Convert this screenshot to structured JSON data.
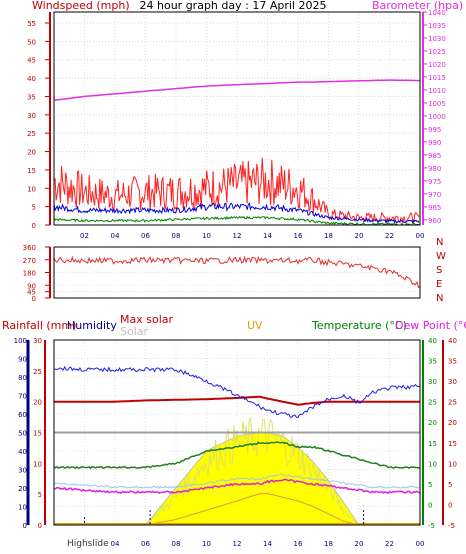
{
  "title": "24 hour graph day : 17 April 2025",
  "colors": {
    "wind": "#e00000",
    "gust": "#ff2020",
    "avgwind": "#0000e0",
    "greenwind": "#008000",
    "baro": "#e030e0",
    "direction": "#e03030",
    "humidity": "#2020e0",
    "maxsolar": "#c00000",
    "solar": "#a0a0a0",
    "uv": "#ffff00",
    "temperature": "#208020",
    "dewpoint": "#e020e0",
    "rain": "#e0a000",
    "cardinal": "#c00000",
    "rainaxis": "#c00000",
    "humaxis": "#000080",
    "tempaxis": "#008000",
    "dewaxis": "#c00000"
  },
  "top_panel": {
    "left_label": "Windspeed (mph)",
    "right_label": "Barometer (hpa)"
  },
  "middle_panel": {
    "cardinals": [
      "N",
      "W",
      "S",
      "E",
      "N"
    ]
  },
  "bottom_panel": {
    "rain_label": "Rainfall (mm)",
    "humidity_label": "Humidity",
    "maxsolar_label": "Max solar",
    "solar_label": "Solar",
    "uv_label": "UV",
    "temp_label": "Temperature (°C)",
    "dew_label": "Dew Point (°C)",
    "highslide": "Highslide"
  },
  "chart_data": [
    {
      "type": "line",
      "x_ticks": [
        "02",
        "04",
        "06",
        "08",
        "10",
        "12",
        "14",
        "16",
        "18",
        "20",
        "22",
        "00"
      ],
      "left_axis": {
        "label": "Windspeed (mph)",
        "ylim": [
          0,
          58
        ],
        "ticks": [
          0,
          5,
          10,
          15,
          20,
          25,
          30,
          35,
          40,
          45,
          50,
          55
        ]
      },
      "right_axis": {
        "label": "Barometer (hpa)",
        "ylim": [
          958,
          1040
        ],
        "ticks": [
          960,
          965,
          970,
          975,
          980,
          985,
          990,
          995,
          1000,
          1005,
          1010,
          1015,
          1020,
          1025,
          1030,
          1035,
          1040
        ]
      },
      "x_hours": [
        0,
        2,
        4,
        6,
        8,
        10,
        12,
        14,
        16,
        17,
        18,
        20,
        22,
        24
      ],
      "series": [
        {
          "axis": "right",
          "values": [
            1006,
            1007.5,
            1008.5,
            1009.5,
            1010.5,
            1011.5,
            1012,
            1012.5,
            1013,
            1013,
            1013.2,
            1013.5,
            1013.8,
            1013.6
          ]
        },
        {
          "axis": "left",
          "values": [
            12,
            9,
            8,
            9,
            9,
            10,
            11,
            12,
            10,
            7,
            3,
            2,
            2,
            2
          ]
        },
        {
          "axis": "left",
          "values": [
            5,
            4,
            4,
            4,
            4,
            5,
            5,
            5,
            4,
            3,
            2,
            1.5,
            1,
            1
          ]
        },
        {
          "axis": "left",
          "values": [
            1.5,
            1.2,
            1.2,
            1.2,
            1.5,
            1.8,
            2,
            2,
            1.5,
            1,
            0.5,
            0.3,
            0.2,
            0.2
          ]
        }
      ]
    },
    {
      "type": "line",
      "y_ticks": [
        0,
        45,
        90,
        135,
        180,
        225,
        270,
        315,
        360
      ],
      "ylim": [
        0,
        360
      ],
      "x_hours": [
        0,
        2,
        4,
        6,
        8,
        10,
        12,
        14,
        16,
        17,
        18,
        19,
        20,
        21,
        22,
        23,
        24
      ],
      "series": [
        {
          "values": [
            270,
            265,
            262,
            268,
            265,
            262,
            268,
            265,
            262,
            268,
            250,
            240,
            225,
            210,
            190,
            140,
            90
          ]
        }
      ]
    },
    {
      "type": "line",
      "x_ticks": [
        "02",
        "04",
        "06",
        "08",
        "10",
        "12",
        "14",
        "16",
        "18",
        "20",
        "22",
        "00"
      ],
      "axes": {
        "humidity": {
          "ylim": [
            0,
            100
          ],
          "ticks": [
            0,
            10,
            20,
            30,
            40,
            50,
            60,
            70,
            80,
            90,
            100
          ]
        },
        "rain": {
          "ylim": [
            0,
            30
          ],
          "ticks": [
            0,
            5,
            10,
            15,
            20,
            25,
            30
          ]
        },
        "temperature": {
          "ylim": [
            -5,
            40
          ],
          "ticks": [
            -5,
            0,
            5,
            10,
            15,
            20,
            25,
            30,
            35,
            40
          ]
        },
        "dewpoint": {
          "ylim": [
            -5,
            40
          ],
          "ticks": [
            -5,
            0,
            5,
            10,
            15,
            20,
            25,
            30,
            35,
            40
          ]
        }
      },
      "x_hours": [
        0,
        2,
        4,
        6,
        8,
        10,
        12,
        13.5,
        14,
        15,
        16,
        17,
        18,
        19,
        20,
        21,
        22,
        24
      ],
      "series": [
        {
          "axis": "humidity",
          "values": [
            85,
            84,
            84,
            84,
            84,
            78,
            70,
            64,
            62,
            60,
            58,
            64,
            68,
            70,
            66,
            72,
            74,
            75
          ]
        },
        {
          "axis": "rain",
          "values": [
            20,
            20,
            20,
            20.2,
            20.3,
            20.4,
            20.6,
            20.8,
            20.5,
            20,
            19.5,
            19.8,
            20,
            20,
            20,
            20,
            20,
            20
          ]
        },
        {
          "axis": "rain",
          "values": [
            15,
            15,
            15,
            15,
            15,
            15,
            15,
            15,
            15,
            15,
            15,
            15,
            15,
            15,
            15,
            15,
            15,
            15
          ]
        },
        {
          "axis": "temperature",
          "values": [
            9,
            9,
            9,
            9,
            10,
            13,
            14,
            15,
            15,
            15,
            14,
            14,
            13,
            12,
            11,
            10,
            9,
            9
          ]
        },
        {
          "axis": "dewpoint",
          "values": [
            4,
            3.5,
            3,
            3,
            3,
            4,
            5,
            5,
            5.5,
            6,
            5.5,
            5,
            4.5,
            4,
            3.5,
            3,
            3,
            3
          ]
        },
        {
          "axis": "humidity",
          "values": [
            0,
            0,
            0,
            0,
            15,
            35,
            45,
            48,
            48,
            44,
            38,
            30,
            20,
            8,
            0,
            0,
            0,
            0
          ]
        },
        {
          "axis": "humidity",
          "values": [
            0,
            0,
            0,
            0,
            20,
            40,
            48,
            50,
            50,
            48,
            42,
            34,
            24,
            12,
            0,
            0,
            0,
            0
          ]
        },
        {
          "axis": "humidity",
          "values": [
            0,
            0,
            0,
            0,
            3,
            8,
            13,
            17,
            17,
            15,
            13,
            10,
            6,
            2,
            0,
            0,
            0,
            0
          ]
        }
      ]
    }
  ]
}
